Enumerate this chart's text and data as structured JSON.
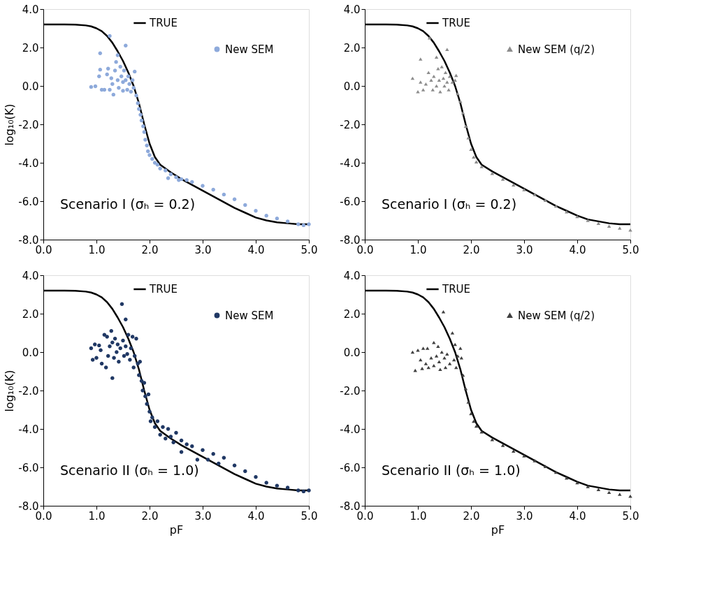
{
  "chart_data": [
    {
      "type": "scatter",
      "ylabel": "log₁₀(K)",
      "annotations": [
        "Scenario I (σₕ = 0.2)"
      ],
      "legend": "top right",
      "grid": false,
      "xlim": [
        0,
        5
      ],
      "ylim": [
        -8,
        4
      ],
      "xticks": [
        {
          "value": 0,
          "label": "0.0"
        },
        {
          "value": 1,
          "label": "1.0"
        },
        {
          "value": 2,
          "label": "2.0"
        },
        {
          "value": 3,
          "label": "3.0"
        },
        {
          "value": 4,
          "label": "4.0"
        },
        {
          "value": 5,
          "label": "5.0"
        }
      ],
      "yticks": [
        {
          "value": -8,
          "label": "-8.0"
        },
        {
          "value": -6,
          "label": "-6.0"
        },
        {
          "value": -4,
          "label": "-4.0"
        },
        {
          "value": -2,
          "label": "-2.0"
        },
        {
          "value": 0,
          "label": "0.0"
        },
        {
          "value": 2,
          "label": "2.0"
        },
        {
          "value": 4,
          "label": "4.0"
        }
      ],
      "series": [
        {
          "name": "TRUE",
          "type": "line",
          "color": "#000000",
          "marker": "none",
          "line_style": "solid",
          "x": [
            0,
            0.2,
            0.4,
            0.6,
            0.8,
            0.9,
            1.0,
            1.1,
            1.2,
            1.3,
            1.4,
            1.5,
            1.6,
            1.7,
            1.8,
            1.9,
            2.0,
            2.1,
            2.2,
            2.4,
            2.6,
            2.8,
            3.0,
            3.2,
            3.4,
            3.6,
            3.8,
            4.0,
            4.2,
            4.4,
            4.6,
            4.8,
            5.0
          ],
          "values": [
            3.2,
            3.2,
            3.2,
            3.19,
            3.15,
            3.1,
            3.0,
            2.85,
            2.6,
            2.25,
            1.8,
            1.3,
            0.7,
            0.0,
            -0.9,
            -2.0,
            -3.0,
            -3.7,
            -4.1,
            -4.5,
            -4.85,
            -5.15,
            -5.45,
            -5.75,
            -6.05,
            -6.35,
            -6.6,
            -6.85,
            -7.0,
            -7.1,
            -7.15,
            -7.2,
            -7.2
          ]
        },
        {
          "name": "New SEM",
          "color": "#8eaadb",
          "marker": "circle",
          "x": [
            0.9,
            0.98,
            1.07,
            1.07,
            1.05,
            1.1,
            1.15,
            1.2,
            1.22,
            1.25,
            1.25,
            1.28,
            1.3,
            1.32,
            1.35,
            1.37,
            1.4,
            1.4,
            1.42,
            1.45,
            1.47,
            1.5,
            1.5,
            1.52,
            1.55,
            1.55,
            1.58,
            1.6,
            1.62,
            1.65,
            1.68,
            1.7,
            1.72,
            1.75,
            1.78,
            1.8,
            1.83,
            1.85,
            1.88,
            1.9,
            1.92,
            1.95,
            1.97,
            2.0,
            2.05,
            2.1,
            2.15,
            2.2,
            2.3,
            2.35,
            2.4,
            2.5,
            2.55,
            2.6,
            2.7,
            2.8,
            3.0,
            3.2,
            3.4,
            3.6,
            3.8,
            4.0,
            4.2,
            4.4,
            4.6,
            4.8,
            4.9,
            5.0
          ],
          "values": [
            -0.05,
            -0.02,
            1.7,
            0.85,
            0.5,
            -0.2,
            -0.2,
            0.6,
            0.9,
            2.6,
            -0.2,
            0.4,
            0.1,
            -0.45,
            0.8,
            1.25,
            1.6,
            0.3,
            -0.1,
            1.0,
            0.5,
            0.2,
            -0.25,
            0.8,
            2.1,
            0.3,
            -0.2,
            0.5,
            0.1,
            -0.3,
            0.3,
            -0.1,
            0.75,
            -0.5,
            -0.9,
            -1.2,
            -1.5,
            -1.8,
            -2.1,
            -2.4,
            -2.8,
            -3.1,
            -3.4,
            -3.6,
            -3.8,
            -4.0,
            -4.1,
            -4.3,
            -4.4,
            -4.8,
            -4.6,
            -4.75,
            -4.9,
            -4.85,
            -4.9,
            -5.0,
            -5.2,
            -5.4,
            -5.65,
            -5.9,
            -6.2,
            -6.5,
            -6.75,
            -6.9,
            -7.05,
            -7.2,
            -7.25,
            -7.2
          ]
        }
      ]
    },
    {
      "type": "scatter",
      "annotations": [
        "Scenario I (σₕ = 0.2)"
      ],
      "legend": "top right",
      "grid": false,
      "xlim": [
        0,
        5
      ],
      "ylim": [
        -8,
        4
      ],
      "xticks": [
        {
          "value": 0,
          "label": "0.0"
        },
        {
          "value": 1,
          "label": "1.0"
        },
        {
          "value": 2,
          "label": "2.0"
        },
        {
          "value": 3,
          "label": "3.0"
        },
        {
          "value": 4,
          "label": "4.0"
        },
        {
          "value": 5,
          "label": "5.0"
        }
      ],
      "yticks": [
        {
          "value": -8,
          "label": "-8.0"
        },
        {
          "value": -6,
          "label": "-6.0"
        },
        {
          "value": -4,
          "label": "-4.0"
        },
        {
          "value": -2,
          "label": "-2.0"
        },
        {
          "value": 0,
          "label": "0.0"
        },
        {
          "value": 2,
          "label": "2.0"
        },
        {
          "value": 4,
          "label": "4.0"
        }
      ],
      "series": [
        {
          "name": "TRUE",
          "type": "line",
          "color": "#000000",
          "marker": "none",
          "line_style": "solid",
          "x": [
            0,
            0.2,
            0.4,
            0.6,
            0.8,
            0.9,
            1.0,
            1.1,
            1.2,
            1.3,
            1.4,
            1.5,
            1.6,
            1.7,
            1.8,
            1.9,
            2.0,
            2.1,
            2.2,
            2.4,
            2.6,
            2.8,
            3.0,
            3.2,
            3.4,
            3.6,
            3.8,
            4.0,
            4.2,
            4.4,
            4.6,
            4.8,
            5.0
          ],
          "values": [
            3.2,
            3.2,
            3.2,
            3.19,
            3.15,
            3.1,
            3.0,
            2.85,
            2.6,
            2.25,
            1.8,
            1.3,
            0.7,
            0.0,
            -0.9,
            -2.0,
            -3.0,
            -3.7,
            -4.1,
            -4.45,
            -4.75,
            -5.05,
            -5.35,
            -5.65,
            -5.95,
            -6.25,
            -6.5,
            -6.75,
            -6.95,
            -7.05,
            -7.15,
            -7.2,
            -7.2
          ]
        },
        {
          "name": "New SEM (q/2)",
          "color": "#8c8c8c",
          "marker": "triangle",
          "x": [
            0.9,
            1.0,
            1.05,
            1.05,
            1.1,
            1.15,
            1.2,
            1.22,
            1.25,
            1.28,
            1.3,
            1.35,
            1.35,
            1.38,
            1.4,
            1.42,
            1.45,
            1.48,
            1.5,
            1.52,
            1.55,
            1.55,
            1.58,
            1.6,
            1.65,
            1.7,
            1.72,
            1.75,
            1.8,
            1.85,
            1.9,
            1.95,
            2.0,
            2.05,
            2.1,
            2.2,
            2.4,
            2.6,
            2.8,
            3.0,
            3.2,
            3.4,
            3.6,
            3.8,
            4.0,
            4.2,
            4.4,
            4.6,
            4.8,
            5.0
          ],
          "values": [
            0.4,
            -0.3,
            1.4,
            0.2,
            -0.2,
            0.1,
            0.7,
            2.5,
            0.3,
            -0.2,
            0.5,
            1.5,
            0.0,
            0.9,
            0.3,
            -0.3,
            1.0,
            0.4,
            0.0,
            0.7,
            1.9,
            0.2,
            -0.2,
            0.5,
            0.2,
            0.3,
            0.55,
            -0.4,
            -0.8,
            -1.4,
            -2.1,
            -2.7,
            -3.3,
            -3.7,
            -3.95,
            -4.2,
            -4.55,
            -4.85,
            -5.15,
            -5.4,
            -5.65,
            -5.95,
            -6.25,
            -6.55,
            -6.8,
            -7.0,
            -7.15,
            -7.3,
            -7.4,
            -7.5
          ]
        }
      ]
    },
    {
      "type": "scatter",
      "ylabel": "log₁₀(K)",
      "xlabel": "pF",
      "annotations": [
        "Scenario II (σₕ = 1.0)"
      ],
      "legend": "top right",
      "grid": false,
      "xlim": [
        0,
        5
      ],
      "ylim": [
        -8,
        4
      ],
      "xticks": [
        {
          "value": 0,
          "label": "0.0"
        },
        {
          "value": 1,
          "label": "1.0"
        },
        {
          "value": 2,
          "label": "2.0"
        },
        {
          "value": 3,
          "label": "3.0"
        },
        {
          "value": 4,
          "label": "4.0"
        },
        {
          "value": 5,
          "label": "5.0"
        }
      ],
      "yticks": [
        {
          "value": -8,
          "label": "-8.0"
        },
        {
          "value": -6,
          "label": "-6.0"
        },
        {
          "value": -4,
          "label": "-4.0"
        },
        {
          "value": -2,
          "label": "-2.0"
        },
        {
          "value": 0,
          "label": "0.0"
        },
        {
          "value": 2,
          "label": "2.0"
        },
        {
          "value": 4,
          "label": "4.0"
        }
      ],
      "series": [
        {
          "name": "TRUE",
          "type": "line",
          "color": "#000000",
          "marker": "none",
          "line_style": "solid",
          "x": [
            0,
            0.2,
            0.4,
            0.6,
            0.8,
            0.9,
            1.0,
            1.1,
            1.2,
            1.3,
            1.4,
            1.5,
            1.6,
            1.7,
            1.8,
            1.9,
            2.0,
            2.1,
            2.2,
            2.4,
            2.6,
            2.8,
            3.0,
            3.2,
            3.4,
            3.6,
            3.8,
            4.0,
            4.2,
            4.4,
            4.6,
            4.8,
            5.0
          ],
          "values": [
            3.2,
            3.2,
            3.2,
            3.19,
            3.15,
            3.1,
            3.0,
            2.85,
            2.6,
            2.25,
            1.8,
            1.3,
            0.7,
            0.0,
            -0.9,
            -2.0,
            -3.0,
            -3.7,
            -4.1,
            -4.5,
            -4.85,
            -5.15,
            -5.45,
            -5.75,
            -6.05,
            -6.35,
            -6.6,
            -6.85,
            -7.0,
            -7.1,
            -7.15,
            -7.2,
            -7.2
          ]
        },
        {
          "name": "New SEM",
          "color": "#203864",
          "marker": "circle",
          "x": [
            0.9,
            0.93,
            0.97,
            1.0,
            1.05,
            1.08,
            1.1,
            1.15,
            1.18,
            1.2,
            1.22,
            1.25,
            1.28,
            1.3,
            1.3,
            1.33,
            1.35,
            1.38,
            1.4,
            1.42,
            1.45,
            1.48,
            1.5,
            1.52,
            1.55,
            1.55,
            1.58,
            1.6,
            1.63,
            1.65,
            1.68,
            1.7,
            1.72,
            1.75,
            1.78,
            1.8,
            1.82,
            1.85,
            1.87,
            1.9,
            1.92,
            1.95,
            1.98,
            2.0,
            2.02,
            2.05,
            2.1,
            2.15,
            2.2,
            2.25,
            2.3,
            2.35,
            2.4,
            2.45,
            2.5,
            2.6,
            2.6,
            2.7,
            2.8,
            2.9,
            3.0,
            3.1,
            3.2,
            3.3,
            3.4,
            3.6,
            3.8,
            4.0,
            4.2,
            4.4,
            4.6,
            4.8,
            4.9,
            5.0
          ],
          "values": [
            0.2,
            -0.4,
            0.4,
            -0.3,
            0.35,
            0.1,
            -0.6,
            0.9,
            -0.8,
            0.8,
            -0.2,
            0.3,
            1.1,
            -1.35,
            0.5,
            -0.3,
            0.7,
            0.0,
            0.4,
            -0.5,
            0.2,
            2.5,
            0.6,
            -0.2,
            1.7,
            0.3,
            -0.1,
            0.9,
            -0.4,
            0.2,
            0.8,
            -0.8,
            -0.2,
            0.7,
            -0.6,
            -1.2,
            -0.5,
            -1.5,
            -2.0,
            -1.6,
            -2.3,
            -2.7,
            -2.2,
            -3.1,
            -3.6,
            -3.4,
            -3.9,
            -3.6,
            -4.3,
            -3.9,
            -4.5,
            -4.0,
            -4.4,
            -4.7,
            -4.2,
            -4.6,
            -5.2,
            -4.8,
            -4.9,
            -5.6,
            -5.1,
            -5.6,
            -5.3,
            -5.8,
            -5.5,
            -5.9,
            -6.2,
            -6.5,
            -6.8,
            -6.95,
            -7.05,
            -7.2,
            -7.25,
            -7.2
          ]
        }
      ]
    },
    {
      "type": "scatter",
      "xlabel": "pF",
      "annotations": [
        "Scenario II (σₕ = 1.0)"
      ],
      "legend": "top right",
      "grid": false,
      "xlim": [
        0,
        5
      ],
      "ylim": [
        -8,
        4
      ],
      "xticks": [
        {
          "value": 0,
          "label": "0.0"
        },
        {
          "value": 1,
          "label": "1.0"
        },
        {
          "value": 2,
          "label": "2.0"
        },
        {
          "value": 3,
          "label": "3.0"
        },
        {
          "value": 4,
          "label": "4.0"
        },
        {
          "value": 5,
          "label": "5.0"
        }
      ],
      "yticks": [
        {
          "value": -8,
          "label": "-8.0"
        },
        {
          "value": -6,
          "label": "-6.0"
        },
        {
          "value": -4,
          "label": "-4.0"
        },
        {
          "value": -2,
          "label": "-2.0"
        },
        {
          "value": 0,
          "label": "0.0"
        },
        {
          "value": 2,
          "label": "2.0"
        },
        {
          "value": 4,
          "label": "4.0"
        }
      ],
      "series": [
        {
          "name": "TRUE",
          "type": "line",
          "color": "#000000",
          "marker": "none",
          "line_style": "solid",
          "x": [
            0,
            0.2,
            0.4,
            0.6,
            0.8,
            0.9,
            1.0,
            1.1,
            1.2,
            1.3,
            1.4,
            1.5,
            1.6,
            1.7,
            1.8,
            1.9,
            2.0,
            2.1,
            2.2,
            2.4,
            2.6,
            2.8,
            3.0,
            3.2,
            3.4,
            3.6,
            3.8,
            4.0,
            4.2,
            4.4,
            4.6,
            4.8,
            5.0
          ],
          "values": [
            3.2,
            3.2,
            3.2,
            3.19,
            3.15,
            3.1,
            3.0,
            2.85,
            2.6,
            2.25,
            1.8,
            1.3,
            0.7,
            0.0,
            -0.9,
            -2.0,
            -3.0,
            -3.7,
            -4.1,
            -4.45,
            -4.75,
            -5.05,
            -5.35,
            -5.65,
            -5.95,
            -6.25,
            -6.5,
            -6.75,
            -6.95,
            -7.05,
            -7.15,
            -7.2,
            -7.2
          ]
        },
        {
          "name": "New SEM (q/2)",
          "color": "#404040",
          "marker": "triangle",
          "x": [
            0.9,
            0.95,
            1.0,
            1.05,
            1.08,
            1.1,
            1.15,
            1.18,
            1.2,
            1.25,
            1.3,
            1.3,
            1.35,
            1.38,
            1.4,
            1.42,
            1.45,
            1.48,
            1.5,
            1.52,
            1.55,
            1.6,
            1.65,
            1.68,
            1.7,
            1.72,
            1.75,
            1.8,
            1.82,
            1.85,
            1.9,
            1.95,
            2.0,
            2.05,
            2.1,
            2.2,
            2.4,
            2.6,
            2.8,
            3.0,
            3.2,
            3.4,
            3.6,
            3.8,
            4.0,
            4.2,
            4.4,
            4.6,
            4.8,
            5.0
          ],
          "values": [
            0.0,
            -0.95,
            0.1,
            -0.4,
            -0.85,
            0.2,
            -0.6,
            0.2,
            -0.8,
            -0.3,
            0.5,
            -0.7,
            -0.2,
            0.3,
            -0.5,
            -0.9,
            0.0,
            2.1,
            -0.3,
            -0.8,
            -0.1,
            -0.6,
            1.0,
            -0.4,
            0.4,
            -0.8,
            -0.2,
            0.2,
            -0.3,
            -1.2,
            -1.9,
            -2.6,
            -3.2,
            -3.6,
            -3.85,
            -4.15,
            -4.55,
            -4.85,
            -5.15,
            -5.4,
            -5.65,
            -5.95,
            -6.25,
            -6.55,
            -6.8,
            -7.0,
            -7.15,
            -7.3,
            -7.4,
            -7.5
          ]
        }
      ]
    }
  ]
}
